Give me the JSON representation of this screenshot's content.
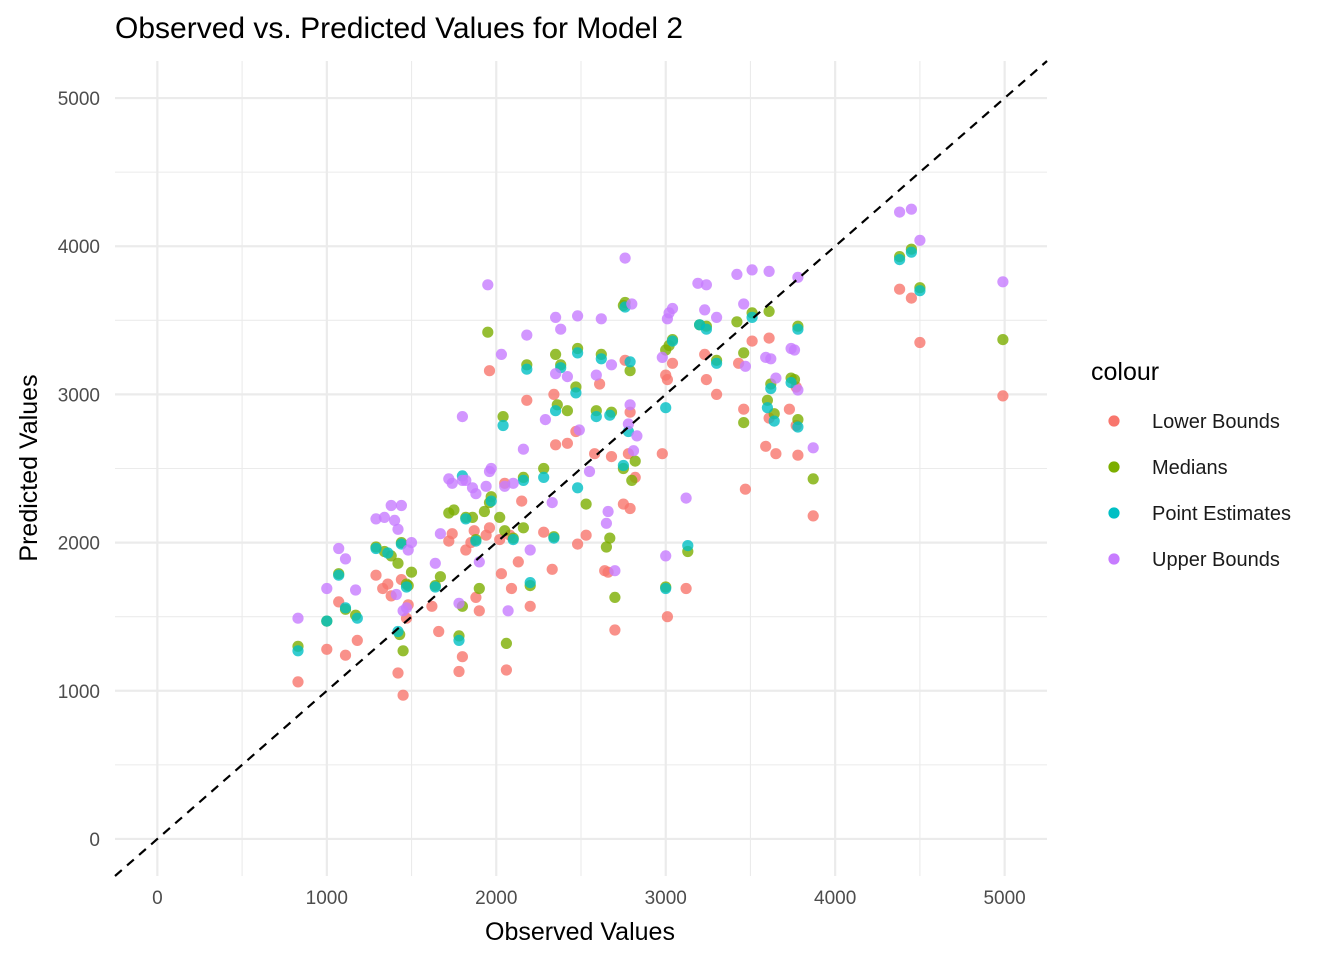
{
  "chart_data": {
    "type": "scatter",
    "title": "Observed vs. Predicted Values for Model 2",
    "xlabel": "Observed Values",
    "ylabel": "Predicted Values",
    "xlim": [
      -250,
      5250
    ],
    "ylim": [
      -250,
      5250
    ],
    "xticks": [
      0,
      1000,
      2000,
      3000,
      4000,
      5000
    ],
    "yticks": [
      0,
      1000,
      2000,
      3000,
      4000,
      5000
    ],
    "grid": true,
    "reference_line": {
      "slope": 1,
      "intercept": 0,
      "style": "dashed",
      "color": "#000000"
    },
    "legend": {
      "title": "colour",
      "position": "right"
    },
    "series": [
      {
        "name": "Lower Bounds",
        "color": "#F8766D",
        "points": [
          [
            830,
            1060
          ],
          [
            1000,
            1280
          ],
          [
            1070,
            1600
          ],
          [
            1110,
            1240
          ],
          [
            1180,
            1340
          ],
          [
            1290,
            1780
          ],
          [
            1330,
            1690
          ],
          [
            1360,
            1720
          ],
          [
            1380,
            1640
          ],
          [
            1420,
            1120
          ],
          [
            1450,
            970
          ],
          [
            1440,
            1750
          ],
          [
            1470,
            1490
          ],
          [
            1480,
            1580
          ],
          [
            1620,
            1570
          ],
          [
            1660,
            1400
          ],
          [
            1720,
            2010
          ],
          [
            1740,
            2060
          ],
          [
            1780,
            1130
          ],
          [
            1800,
            1230
          ],
          [
            1820,
            1950
          ],
          [
            1850,
            2000
          ],
          [
            1870,
            2080
          ],
          [
            1880,
            1630
          ],
          [
            1900,
            1540
          ],
          [
            1940,
            2050
          ],
          [
            1960,
            2100
          ],
          [
            1960,
            3160
          ],
          [
            2020,
            2020
          ],
          [
            2030,
            1790
          ],
          [
            2050,
            2400
          ],
          [
            2060,
            1140
          ],
          [
            2080,
            2050
          ],
          [
            2090,
            1690
          ],
          [
            2130,
            1870
          ],
          [
            2150,
            2280
          ],
          [
            2180,
            2960
          ],
          [
            2200,
            1570
          ],
          [
            2280,
            2070
          ],
          [
            2330,
            1820
          ],
          [
            2340,
            3000
          ],
          [
            2350,
            2660
          ],
          [
            2420,
            2670
          ],
          [
            2470,
            2750
          ],
          [
            2480,
            1990
          ],
          [
            2530,
            2050
          ],
          [
            2580,
            2600
          ],
          [
            2610,
            3070
          ],
          [
            2640,
            1810
          ],
          [
            2660,
            1800
          ],
          [
            2680,
            2580
          ],
          [
            2700,
            1410
          ],
          [
            2750,
            2260
          ],
          [
            2760,
            3230
          ],
          [
            2780,
            2600
          ],
          [
            2790,
            2230
          ],
          [
            2790,
            2880
          ],
          [
            2820,
            2440
          ],
          [
            2980,
            2600
          ],
          [
            3000,
            3130
          ],
          [
            3010,
            3100
          ],
          [
            3010,
            1500
          ],
          [
            3040,
            3210
          ],
          [
            3120,
            1690
          ],
          [
            3230,
            3270
          ],
          [
            3240,
            3100
          ],
          [
            3300,
            3000
          ],
          [
            3430,
            3210
          ],
          [
            3470,
            2360
          ],
          [
            3460,
            2900
          ],
          [
            3510,
            3360
          ],
          [
            3590,
            2650
          ],
          [
            3610,
            3380
          ],
          [
            3610,
            2840
          ],
          [
            3650,
            2600
          ],
          [
            3730,
            2900
          ],
          [
            3770,
            2790
          ],
          [
            3770,
            3050
          ],
          [
            3780,
            2590
          ],
          [
            3870,
            2180
          ],
          [
            4380,
            3710
          ],
          [
            4450,
            3650
          ],
          [
            4500,
            3350
          ],
          [
            4990,
            2990
          ]
        ]
      },
      {
        "name": "Medians",
        "color": "#7CAE00",
        "points": [
          [
            830,
            1300
          ],
          [
            1000,
            1470
          ],
          [
            1070,
            1790
          ],
          [
            1110,
            1550
          ],
          [
            1170,
            1510
          ],
          [
            1290,
            1970
          ],
          [
            1340,
            1940
          ],
          [
            1380,
            1910
          ],
          [
            1420,
            1860
          ],
          [
            1430,
            1380
          ],
          [
            1440,
            2000
          ],
          [
            1450,
            1270
          ],
          [
            1470,
            1720
          ],
          [
            1480,
            1710
          ],
          [
            1500,
            1800
          ],
          [
            1640,
            1710
          ],
          [
            1670,
            1770
          ],
          [
            1720,
            2200
          ],
          [
            1750,
            2220
          ],
          [
            1780,
            1370
          ],
          [
            1800,
            1570
          ],
          [
            1820,
            2170
          ],
          [
            1860,
            2170
          ],
          [
            1880,
            2020
          ],
          [
            1900,
            1690
          ],
          [
            1930,
            2210
          ],
          [
            1950,
            3420
          ],
          [
            1960,
            2270
          ],
          [
            1970,
            2310
          ],
          [
            2020,
            2170
          ],
          [
            2040,
            2850
          ],
          [
            2060,
            1320
          ],
          [
            2050,
            2080
          ],
          [
            2100,
            2030
          ],
          [
            2160,
            2440
          ],
          [
            2160,
            2100
          ],
          [
            2180,
            3200
          ],
          [
            2200,
            1710
          ],
          [
            2280,
            2500
          ],
          [
            2340,
            2040
          ],
          [
            2350,
            3270
          ],
          [
            2360,
            2930
          ],
          [
            2380,
            3200
          ],
          [
            2420,
            2890
          ],
          [
            2470,
            3050
          ],
          [
            2480,
            3310
          ],
          [
            2530,
            2260
          ],
          [
            2590,
            2890
          ],
          [
            2620,
            3270
          ],
          [
            2650,
            1970
          ],
          [
            2670,
            2030
          ],
          [
            2680,
            2880
          ],
          [
            2700,
            1630
          ],
          [
            2750,
            2500
          ],
          [
            2750,
            3600
          ],
          [
            2760,
            3620
          ],
          [
            2790,
            3160
          ],
          [
            2800,
            2420
          ],
          [
            2820,
            2550
          ],
          [
            3000,
            1700
          ],
          [
            3000,
            3300
          ],
          [
            3020,
            3330
          ],
          [
            3040,
            3370
          ],
          [
            3130,
            1940
          ],
          [
            3200,
            3470
          ],
          [
            3240,
            3460
          ],
          [
            3300,
            3230
          ],
          [
            3420,
            3490
          ],
          [
            3460,
            2810
          ],
          [
            3460,
            3280
          ],
          [
            3510,
            3550
          ],
          [
            3600,
            2960
          ],
          [
            3610,
            3560
          ],
          [
            3620,
            3070
          ],
          [
            3640,
            2870
          ],
          [
            3740,
            3110
          ],
          [
            3760,
            3100
          ],
          [
            3780,
            3460
          ],
          [
            3780,
            2830
          ],
          [
            3870,
            2430
          ],
          [
            4380,
            3930
          ],
          [
            4450,
            3980
          ],
          [
            4500,
            3720
          ],
          [
            4990,
            3370
          ]
        ]
      },
      {
        "name": "Point Estimates",
        "color": "#00BFC4",
        "points": [
          [
            830,
            1270
          ],
          [
            1000,
            1470
          ],
          [
            1070,
            1780
          ],
          [
            1110,
            1560
          ],
          [
            1180,
            1490
          ],
          [
            1290,
            1960
          ],
          [
            1360,
            1930
          ],
          [
            1420,
            1400
          ],
          [
            1440,
            1990
          ],
          [
            1470,
            1700
          ],
          [
            1640,
            1700
          ],
          [
            1780,
            1340
          ],
          [
            1800,
            2450
          ],
          [
            1820,
            2160
          ],
          [
            1880,
            2010
          ],
          [
            1970,
            2280
          ],
          [
            2040,
            2790
          ],
          [
            2100,
            2020
          ],
          [
            2160,
            2420
          ],
          [
            2180,
            3170
          ],
          [
            2200,
            1730
          ],
          [
            2280,
            2440
          ],
          [
            2340,
            2030
          ],
          [
            2350,
            2890
          ],
          [
            2380,
            3180
          ],
          [
            2470,
            3010
          ],
          [
            2480,
            2370
          ],
          [
            2480,
            3280
          ],
          [
            2590,
            2850
          ],
          [
            2620,
            3240
          ],
          [
            2670,
            2860
          ],
          [
            2750,
            2520
          ],
          [
            2760,
            3590
          ],
          [
            2780,
            2750
          ],
          [
            2790,
            3220
          ],
          [
            3000,
            1690
          ],
          [
            3000,
            2910
          ],
          [
            3040,
            3360
          ],
          [
            3130,
            1980
          ],
          [
            3200,
            3470
          ],
          [
            3240,
            3440
          ],
          [
            3300,
            3210
          ],
          [
            3510,
            3520
          ],
          [
            3600,
            2910
          ],
          [
            3620,
            3040
          ],
          [
            3640,
            2820
          ],
          [
            3740,
            3080
          ],
          [
            3780,
            3440
          ],
          [
            3780,
            2780
          ],
          [
            4380,
            3910
          ],
          [
            4450,
            3960
          ],
          [
            4500,
            3700
          ]
        ]
      },
      {
        "name": "Upper Bounds",
        "color": "#C77CFF",
        "points": [
          [
            830,
            1490
          ],
          [
            1000,
            1690
          ],
          [
            1070,
            1960
          ],
          [
            1110,
            1890
          ],
          [
            1170,
            1680
          ],
          [
            1290,
            2160
          ],
          [
            1340,
            2170
          ],
          [
            1380,
            2250
          ],
          [
            1400,
            2150
          ],
          [
            1420,
            2090
          ],
          [
            1440,
            2250
          ],
          [
            1410,
            1650
          ],
          [
            1450,
            1540
          ],
          [
            1480,
            1950
          ],
          [
            1470,
            1560
          ],
          [
            1500,
            2000
          ],
          [
            1640,
            1860
          ],
          [
            1670,
            2060
          ],
          [
            1720,
            2430
          ],
          [
            1740,
            2400
          ],
          [
            1780,
            1590
          ],
          [
            1800,
            2420
          ],
          [
            1800,
            2850
          ],
          [
            1820,
            2420
          ],
          [
            1860,
            2370
          ],
          [
            1880,
            2330
          ],
          [
            1900,
            1870
          ],
          [
            1940,
            2380
          ],
          [
            1950,
            3740
          ],
          [
            1960,
            2480
          ],
          [
            1970,
            2500
          ],
          [
            2030,
            3270
          ],
          [
            2050,
            2380
          ],
          [
            2070,
            1540
          ],
          [
            2100,
            2400
          ],
          [
            2160,
            2630
          ],
          [
            2180,
            3400
          ],
          [
            2200,
            1950
          ],
          [
            2290,
            2830
          ],
          [
            2330,
            2270
          ],
          [
            2350,
            3520
          ],
          [
            2350,
            3140
          ],
          [
            2380,
            3440
          ],
          [
            2420,
            3120
          ],
          [
            2480,
            3530
          ],
          [
            2490,
            2760
          ],
          [
            2550,
            2480
          ],
          [
            2590,
            3130
          ],
          [
            2620,
            3510
          ],
          [
            2650,
            2130
          ],
          [
            2660,
            2210
          ],
          [
            2680,
            3200
          ],
          [
            2700,
            1810
          ],
          [
            2760,
            3920
          ],
          [
            2780,
            2800
          ],
          [
            2790,
            2930
          ],
          [
            2800,
            3610
          ],
          [
            2810,
            2620
          ],
          [
            2830,
            2720
          ],
          [
            2980,
            3250
          ],
          [
            3010,
            3510
          ],
          [
            3020,
            3550
          ],
          [
            3000,
            1910
          ],
          [
            3040,
            3580
          ],
          [
            3120,
            2300
          ],
          [
            3190,
            3750
          ],
          [
            3230,
            3570
          ],
          [
            3240,
            3740
          ],
          [
            3300,
            3520
          ],
          [
            3420,
            3810
          ],
          [
            3460,
            3610
          ],
          [
            3470,
            3190
          ],
          [
            3510,
            3840
          ],
          [
            3590,
            3250
          ],
          [
            3610,
            3830
          ],
          [
            3620,
            3240
          ],
          [
            3650,
            3110
          ],
          [
            3740,
            3310
          ],
          [
            3760,
            3300
          ],
          [
            3780,
            3790
          ],
          [
            3780,
            3030
          ],
          [
            3870,
            2640
          ],
          [
            4380,
            4230
          ],
          [
            4450,
            4250
          ],
          [
            4500,
            4040
          ],
          [
            4990,
            3760
          ]
        ]
      }
    ]
  }
}
